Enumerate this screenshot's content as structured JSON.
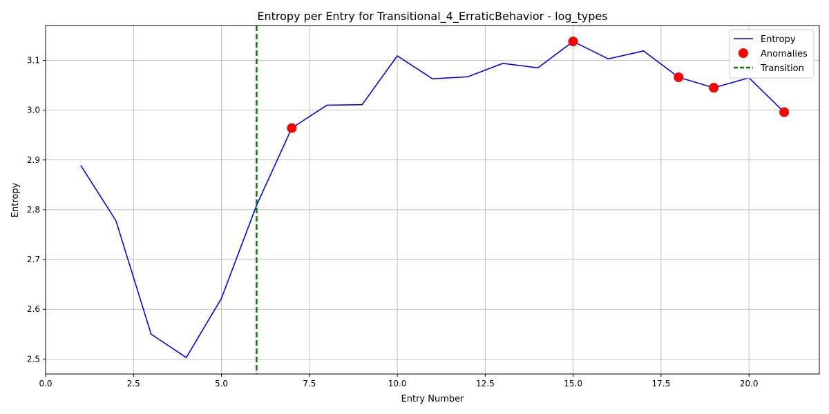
{
  "chart_data": {
    "type": "line",
    "title": "Entropy per Entry for Transitional_4_ErraticBehavior - log_types",
    "xlabel": "Entry Number",
    "ylabel": "Entropy",
    "xlim": [
      0,
      22
    ],
    "ylim": [
      2.47,
      3.17
    ],
    "x_ticks": [
      0,
      2.5,
      5,
      7.5,
      10,
      12.5,
      15,
      17.5,
      20
    ],
    "x_tick_labels": [
      "0.0",
      "2.5",
      "5.0",
      "7.5",
      "10.0",
      "12.5",
      "15.0",
      "17.5",
      "20.0"
    ],
    "y_ticks": [
      2.5,
      2.6,
      2.7,
      2.8,
      2.9,
      3.0,
      3.1
    ],
    "y_tick_labels": [
      "2.5",
      "2.6",
      "2.7",
      "2.8",
      "2.9",
      "3.0",
      "3.1"
    ],
    "grid": true,
    "legend_position": "top-right",
    "series": [
      {
        "name": "Entropy",
        "kind": "line",
        "color": "#0000ff",
        "x": [
          1,
          2,
          3,
          4,
          5,
          6,
          7,
          8,
          9,
          10,
          11,
          12,
          13,
          14,
          15,
          16,
          17,
          18,
          19,
          20,
          21
        ],
        "y": [
          2.889,
          2.778,
          2.55,
          2.503,
          2.622,
          2.809,
          2.964,
          3.01,
          3.011,
          3.109,
          3.063,
          3.067,
          3.094,
          3.085,
          3.138,
          3.103,
          3.119,
          3.066,
          3.045,
          3.065,
          2.996
        ]
      },
      {
        "name": "Anomalies",
        "kind": "scatter",
        "color": "#ff0000",
        "x": [
          7,
          15,
          18,
          19,
          21
        ],
        "y": [
          2.964,
          3.138,
          3.066,
          3.045,
          2.996
        ]
      },
      {
        "name": "Transition",
        "kind": "vline",
        "color": "#008000",
        "x": 6
      }
    ]
  }
}
